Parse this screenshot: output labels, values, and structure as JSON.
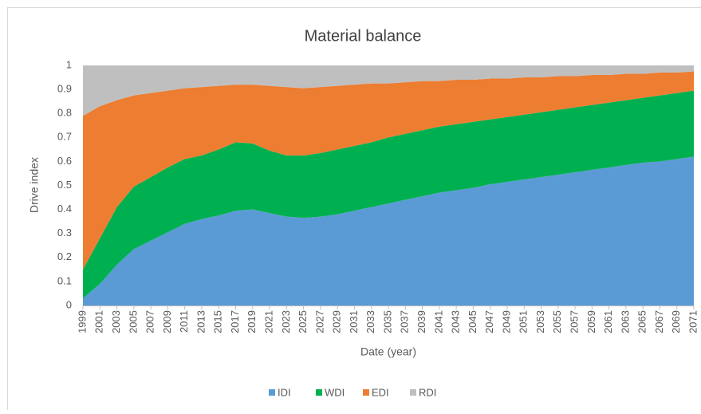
{
  "chart_data": {
    "type": "stacked_area",
    "title": "Material balance",
    "x_label": "Date (year)",
    "y_label": "Drive index",
    "x": [
      1999,
      2001,
      2003,
      2005,
      2007,
      2009,
      2011,
      2013,
      2015,
      2017,
      2019,
      2021,
      2023,
      2025,
      2027,
      2029,
      2031,
      2033,
      2035,
      2037,
      2039,
      2041,
      2043,
      2045,
      2047,
      2049,
      2051,
      2053,
      2055,
      2057,
      2059,
      2061,
      2063,
      2065,
      2067,
      2069,
      2071
    ],
    "xlim": [
      1999,
      2071
    ],
    "xticks": [
      1999,
      2001,
      2003,
      2005,
      2007,
      2009,
      2011,
      2013,
      2015,
      2017,
      2019,
      2021,
      2023,
      2025,
      2027,
      2029,
      2031,
      2033,
      2035,
      2037,
      2039,
      2041,
      2043,
      2045,
      2047,
      2049,
      2051,
      2053,
      2055,
      2057,
      2059,
      2061,
      2063,
      2065,
      2067,
      2069,
      2071
    ],
    "ylim": [
      0,
      1
    ],
    "yticks": [
      0,
      0.1,
      0.2,
      0.3,
      0.4,
      0.5,
      0.6,
      0.7,
      0.8,
      0.9,
      1
    ],
    "legend": "bottom",
    "series": [
      {
        "name": "IDI",
        "color": "#5b9bd5",
        "values": [
          0.03,
          0.09,
          0.17,
          0.235,
          0.27,
          0.305,
          0.34,
          0.36,
          0.375,
          0.395,
          0.4,
          0.385,
          0.37,
          0.365,
          0.37,
          0.38,
          0.395,
          0.41,
          0.425,
          0.44,
          0.455,
          0.47,
          0.48,
          0.49,
          0.505,
          0.515,
          0.525,
          0.535,
          0.545,
          0.555,
          0.565,
          0.575,
          0.585,
          0.595,
          0.6,
          0.61,
          0.62
        ]
      },
      {
        "name": "WDI",
        "color": "#00b050",
        "values": [
          0.12,
          0.19,
          0.24,
          0.26,
          0.265,
          0.27,
          0.27,
          0.265,
          0.275,
          0.285,
          0.275,
          0.26,
          0.255,
          0.26,
          0.265,
          0.27,
          0.27,
          0.27,
          0.275,
          0.275,
          0.275,
          0.275,
          0.275,
          0.275,
          0.27,
          0.27,
          0.27,
          0.27,
          0.27,
          0.27,
          0.27,
          0.27,
          0.27,
          0.27,
          0.275,
          0.275,
          0.275
        ]
      },
      {
        "name": "EDI",
        "color": "#ed7d31",
        "values": [
          0.64,
          0.55,
          0.445,
          0.38,
          0.35,
          0.32,
          0.295,
          0.285,
          0.265,
          0.24,
          0.245,
          0.27,
          0.285,
          0.28,
          0.275,
          0.265,
          0.255,
          0.245,
          0.225,
          0.215,
          0.205,
          0.19,
          0.185,
          0.175,
          0.17,
          0.16,
          0.155,
          0.145,
          0.14,
          0.13,
          0.125,
          0.115,
          0.11,
          0.1,
          0.095,
          0.085,
          0.08
        ]
      },
      {
        "name": "RDI",
        "color": "#bfbfbf",
        "values": [
          0.21,
          0.17,
          0.145,
          0.125,
          0.115,
          0.105,
          0.095,
          0.09,
          0.085,
          0.08,
          0.08,
          0.085,
          0.09,
          0.095,
          0.09,
          0.085,
          0.08,
          0.075,
          0.075,
          0.07,
          0.065,
          0.065,
          0.06,
          0.06,
          0.055,
          0.055,
          0.05,
          0.05,
          0.045,
          0.045,
          0.04,
          0.04,
          0.035,
          0.035,
          0.03,
          0.03,
          0.025
        ]
      }
    ]
  }
}
